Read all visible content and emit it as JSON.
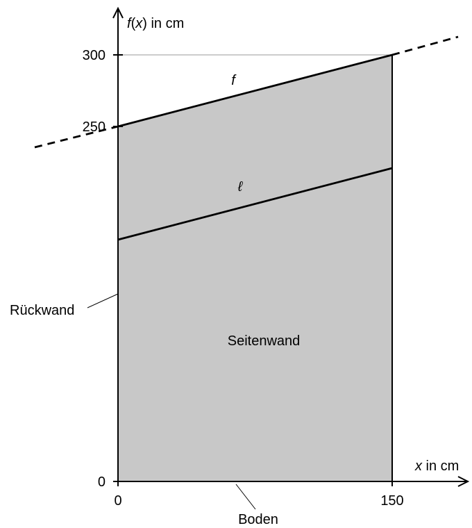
{
  "diagram": {
    "y_axis_label_func": "f",
    "y_axis_label_var": "x",
    "y_axis_label_unit": " in cm",
    "x_axis_label_var": "x",
    "x_axis_label_unit": " in cm",
    "y_ticks": [
      "300",
      "250",
      "0"
    ],
    "x_ticks": [
      "0",
      "150"
    ],
    "curve_f_label": "f",
    "curve_l_label": "ℓ",
    "region_label": "Seitenwand",
    "callout_back_wall": "Rückwand",
    "callout_floor": "Boden",
    "colors": {
      "region_fill": "#c8c8c8",
      "stroke": "#000000",
      "gridline": "#999999"
    }
  }
}
